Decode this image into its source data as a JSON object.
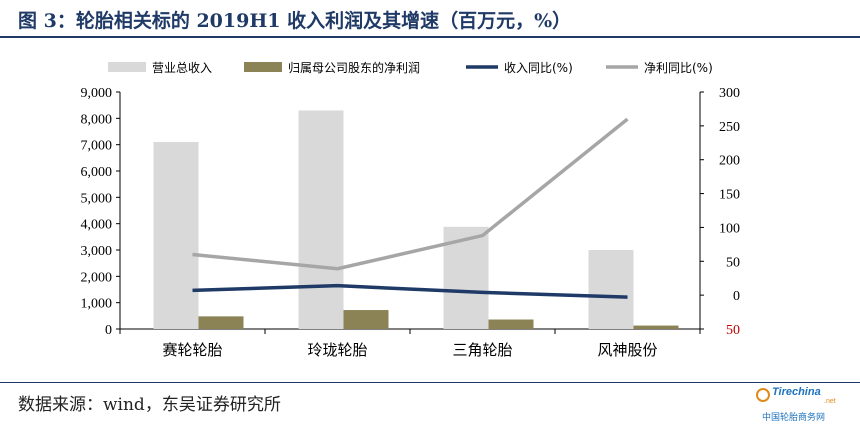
{
  "title": "图 3：轮胎相关标的 2019H1 收入利润及其增速（百万元，%）",
  "source": "数据来源：wind，东吴证券研究所",
  "watermark": {
    "brand": "Tirechina",
    "suffix": ".net",
    "subtitle": "中国轮胎商务网"
  },
  "colors": {
    "revenue": "#d9d9d9",
    "net_profit": "#8b8355",
    "revenue_yoy": "#1f3a66",
    "profit_yoy": "#a6a6a6",
    "axis": "#000000",
    "neg_tick": "#c00000"
  },
  "chart_data": {
    "type": "bar+line",
    "categories": [
      "赛轮轮胎",
      "玲珑轮胎",
      "三角轮胎",
      "风神股份"
    ],
    "series": [
      {
        "name": "营业总收入",
        "kind": "bar",
        "axis": "left",
        "values": [
          7100,
          8300,
          3880,
          3000
        ]
      },
      {
        "name": "归属母公司股东的净利润",
        "kind": "bar",
        "axis": "left",
        "values": [
          480,
          720,
          360,
          130
        ]
      },
      {
        "name": "收入同比(%)",
        "kind": "line",
        "axis": "right",
        "values": [
          7,
          14,
          4,
          -3
        ]
      },
      {
        "name": "净利同比(%)",
        "kind": "line",
        "axis": "right",
        "values": [
          60,
          39,
          88,
          260
        ]
      }
    ],
    "left_axis": {
      "ylim": [
        0,
        9000
      ],
      "ticks": [
        "0",
        "1,000",
        "2,000",
        "3,000",
        "4,000",
        "5,000",
        "6,000",
        "7,000",
        "8,000",
        "9,000"
      ]
    },
    "right_axis": {
      "ylim": [
        -50,
        300
      ],
      "ticks": [
        "-50",
        "0",
        "50",
        "100",
        "150",
        "200",
        "250",
        "300"
      ],
      "neg_tick_display": "50"
    },
    "legend_position": "top",
    "grid": false
  }
}
